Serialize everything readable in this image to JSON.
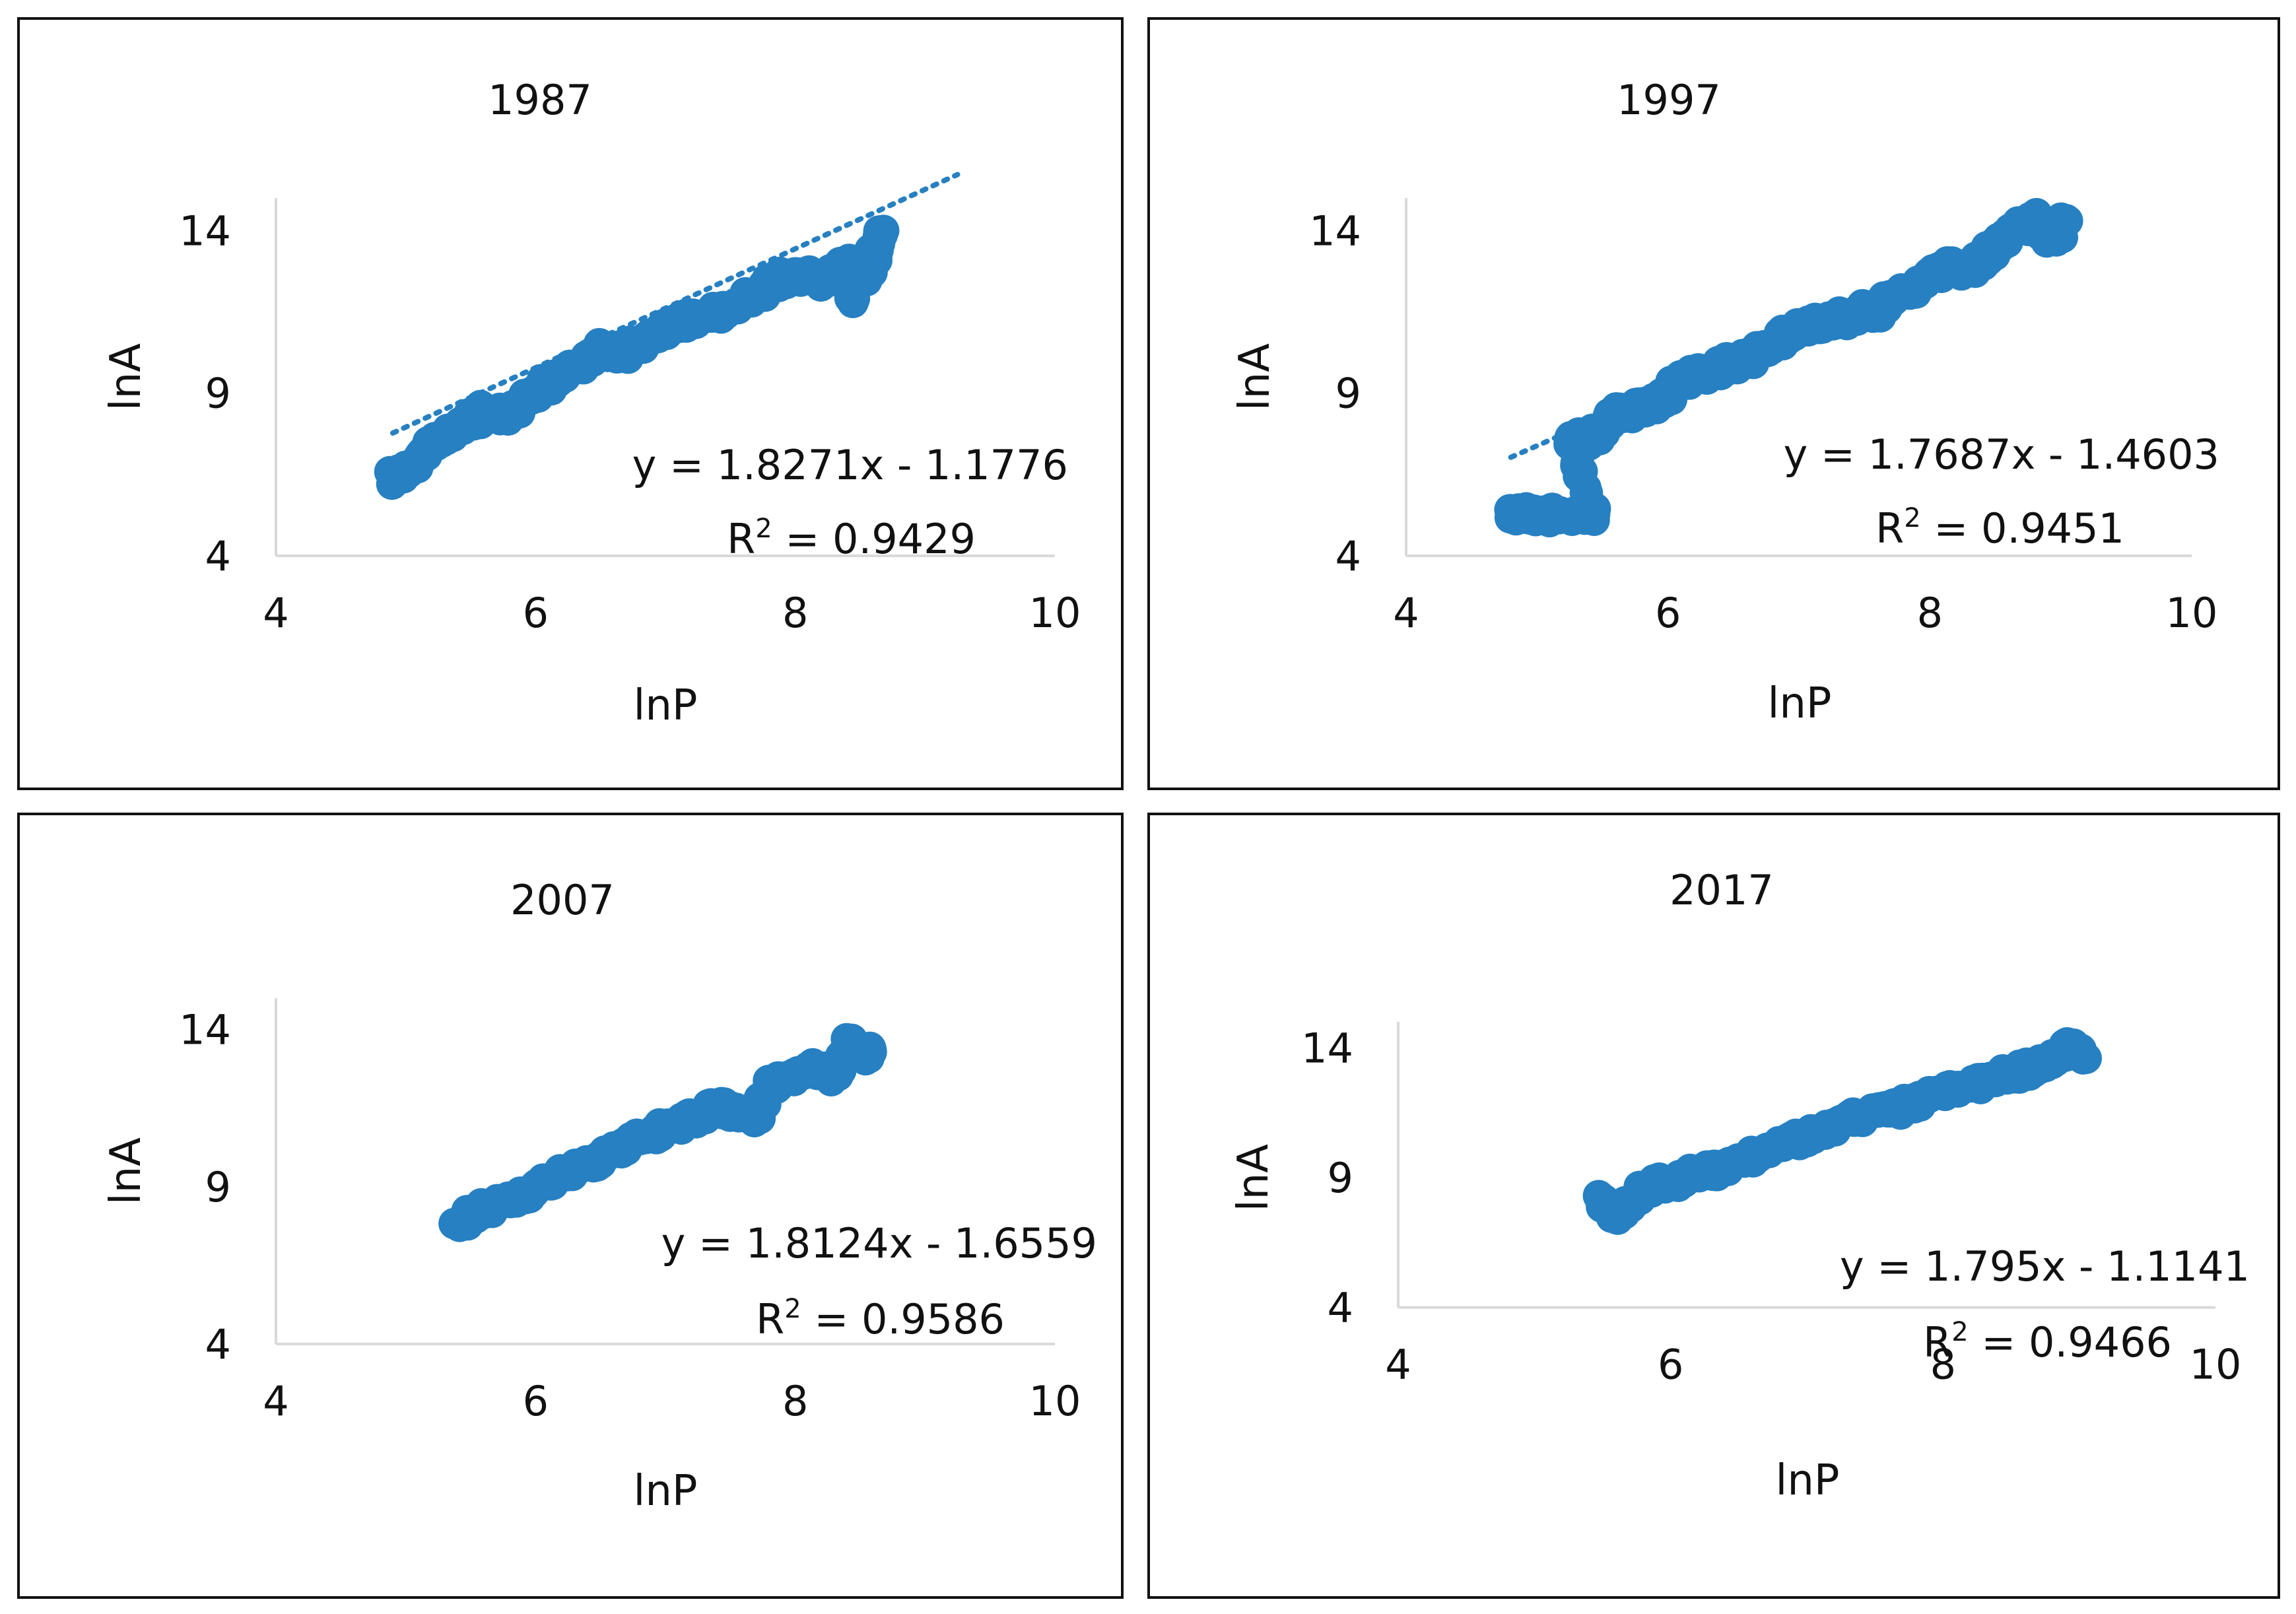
{
  "chart_data": [
    {
      "type": "scatter",
      "title": "1987",
      "xlabel": "lnP",
      "ylabel": "lnA",
      "xlim": [
        4,
        10
      ],
      "ylim": [
        4,
        15
      ],
      "x_ticks": [
        "4",
        "6",
        "8",
        "10"
      ],
      "y_ticks": [
        "4",
        "9",
        "14"
      ],
      "trendline": {
        "slope": 1.8271,
        "intercept": -1.1776,
        "x_range": [
          4.9,
          9.25
        ]
      },
      "equation": "y = 1.8271x - 1.1776",
      "r2_label": "R",
      "r2_sup": "2",
      "r2_value": " = 0.9429",
      "spread": 0.45,
      "points": [
        [
          4.9,
          6.4
        ],
        [
          5.35,
          7.8
        ],
        [
          5.6,
          8.4
        ],
        [
          5.8,
          8.4
        ],
        [
          6.0,
          9.1
        ],
        [
          6.2,
          9.5
        ],
        [
          6.5,
          10.3
        ],
        [
          6.7,
          10.3
        ],
        [
          7.0,
          11.0
        ],
        [
          7.2,
          11.3
        ],
        [
          7.5,
          11.6
        ],
        [
          7.8,
          12.3
        ],
        [
          8.0,
          12.7
        ],
        [
          8.2,
          12.5
        ],
        [
          8.4,
          12.9
        ],
        [
          8.45,
          12.0
        ],
        [
          8.6,
          13.2
        ],
        [
          8.68,
          14.0
        ]
      ]
    },
    {
      "type": "scatter",
      "title": "1997",
      "xlabel": "lnP",
      "ylabel": "lnA",
      "xlim": [
        4,
        10
      ],
      "ylim": [
        4,
        15
      ],
      "x_ticks": [
        "4",
        "6",
        "8",
        "10"
      ],
      "y_ticks": [
        "4",
        "9",
        "14"
      ],
      "trendline": {
        "slope": 1.7687,
        "intercept": -1.4603,
        "x_range": [
          4.8,
          9.0
        ]
      },
      "equation": "y = 1.7687x - 1.4603",
      "r2_label": "R",
      "r2_sup": "2",
      "r2_value": " = 0.9451",
      "spread": 0.5,
      "points": [
        [
          4.82,
          5.3
        ],
        [
          5.43,
          5.3
        ],
        [
          5.25,
          7.6
        ],
        [
          5.4,
          7.6
        ],
        [
          5.6,
          8.4
        ],
        [
          5.9,
          8.6
        ],
        [
          6.1,
          9.4
        ],
        [
          6.4,
          9.8
        ],
        [
          6.7,
          10.2
        ],
        [
          7.0,
          11.0
        ],
        [
          7.3,
          11.3
        ],
        [
          7.6,
          11.6
        ],
        [
          7.9,
          12.3
        ],
        [
          8.1,
          12.8
        ],
        [
          8.4,
          13.0
        ],
        [
          8.5,
          13.6
        ],
        [
          8.8,
          14.3
        ],
        [
          8.95,
          13.7
        ],
        [
          9.05,
          14.3
        ]
      ]
    },
    {
      "type": "scatter",
      "title": "2007",
      "xlabel": "lnP",
      "ylabel": "lnA",
      "xlim": [
        4,
        10
      ],
      "ylim": [
        4,
        15
      ],
      "x_ticks": [
        "4",
        "6",
        "8",
        "10"
      ],
      "y_ticks": [
        "4",
        "9",
        "14"
      ],
      "equation": "y = 1.8124x - 1.6559",
      "r2_label": "R",
      "r2_sup": "2",
      "r2_value": " = 0.9586",
      "spread": 0.4,
      "points": [
        [
          5.4,
          7.8
        ],
        [
          5.6,
          8.3
        ],
        [
          5.9,
          8.7
        ],
        [
          6.2,
          9.4
        ],
        [
          6.5,
          9.8
        ],
        [
          6.8,
          10.5
        ],
        [
          7.1,
          11.0
        ],
        [
          7.4,
          11.6
        ],
        [
          7.7,
          11.2
        ],
        [
          7.8,
          12.2
        ],
        [
          8.1,
          12.8
        ],
        [
          8.3,
          12.5
        ],
        [
          8.4,
          13.6
        ],
        [
          8.55,
          13.2
        ],
        [
          8.58,
          13.4
        ]
      ]
    },
    {
      "type": "scatter",
      "title": "2017",
      "xlabel": "lnP",
      "ylabel": "lnA",
      "xlim": [
        4,
        10
      ],
      "ylim": [
        3,
        15
      ],
      "x_ticks": [
        "4",
        "6",
        "8",
        "10"
      ],
      "y_ticks": [
        "4",
        "9",
        "14"
      ],
      "equation": "y = 1.795x - 1.1141",
      "r2_label": "R",
      "r2_sup": "2",
      "r2_value": " = 0.9466",
      "spread": 0.5,
      "points": [
        [
          5.5,
          8.1
        ],
        [
          5.6,
          7.6
        ],
        [
          5.8,
          8.6
        ],
        [
          6.1,
          9.0
        ],
        [
          6.4,
          9.4
        ],
        [
          6.7,
          10.1
        ],
        [
          7.0,
          10.6
        ],
        [
          7.3,
          11.2
        ],
        [
          7.6,
          11.6
        ],
        [
          7.9,
          12.1
        ],
        [
          8.2,
          12.5
        ],
        [
          8.5,
          13.0
        ],
        [
          8.8,
          13.4
        ],
        [
          8.9,
          14.0
        ],
        [
          9.05,
          13.6
        ]
      ]
    }
  ],
  "colors": {
    "marker": "#2680C2",
    "axis": "#D9D9D9",
    "frame": "#111111"
  }
}
